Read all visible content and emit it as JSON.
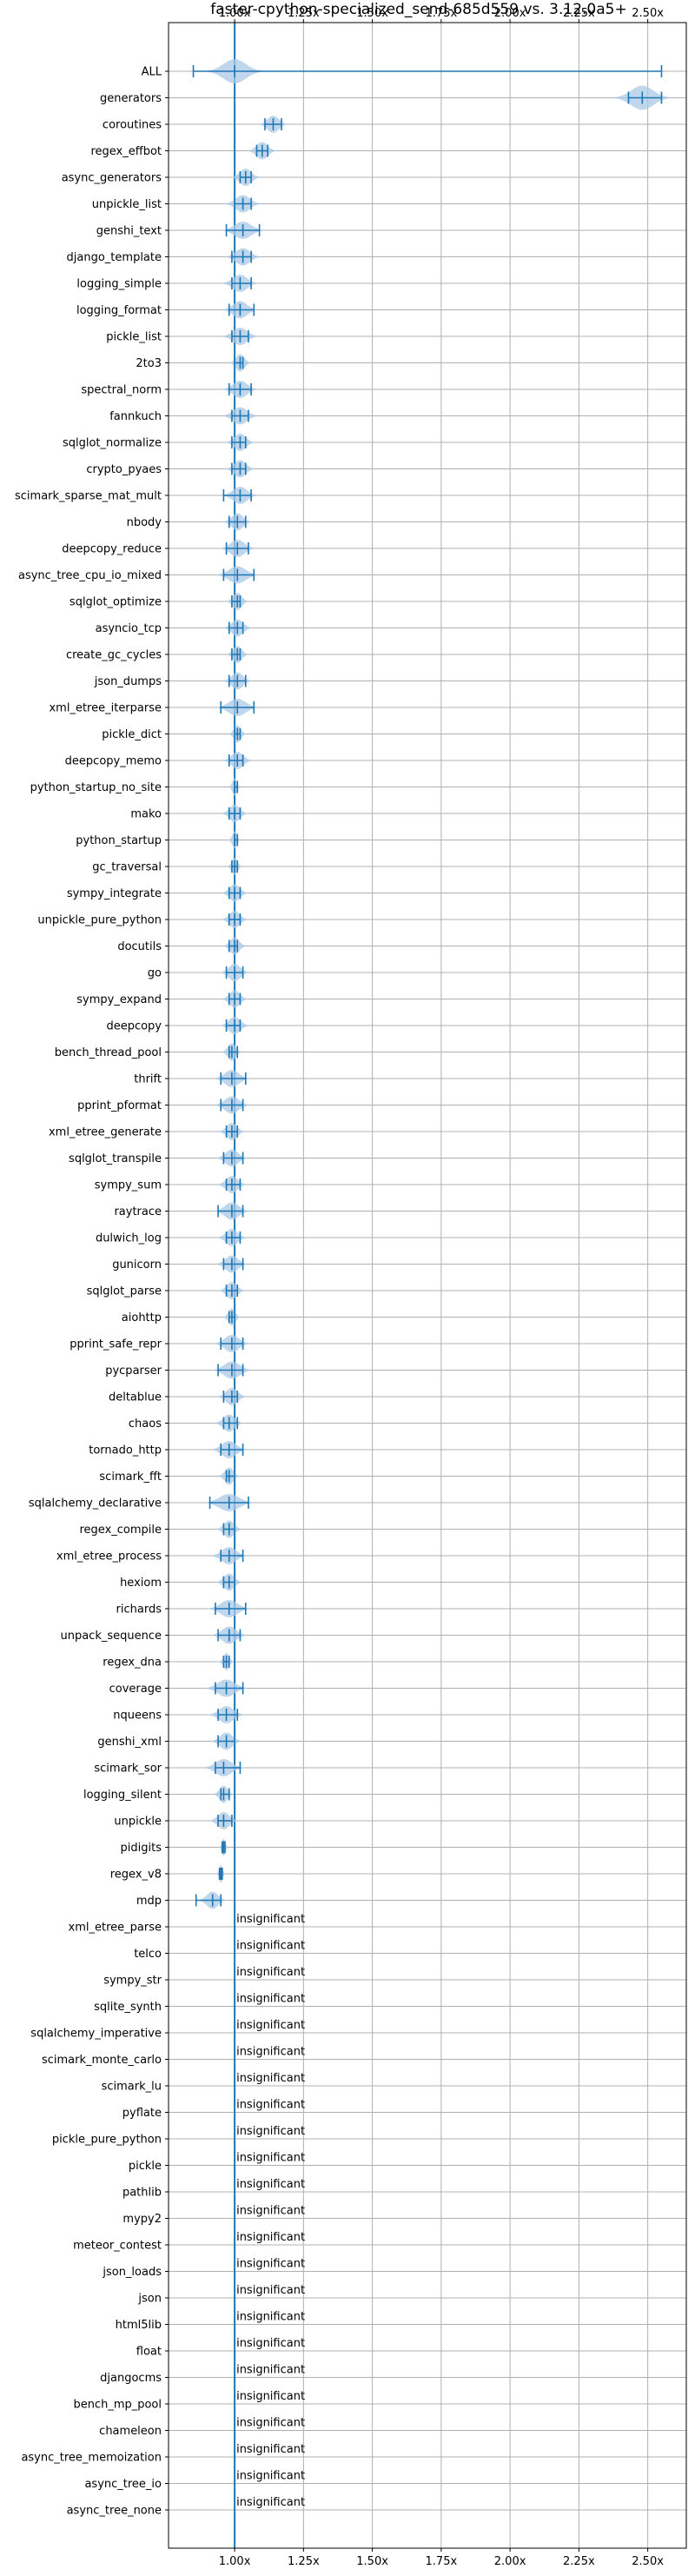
{
  "chart_data": {
    "type": "violin",
    "title": "faster-cpython-specialized_send-685d559 vs. 3.12.0a5+",
    "xlabel": "",
    "ylabel": "",
    "xlim": [
      0.76,
      2.64
    ],
    "xticks": [
      1.0,
      1.25,
      1.5,
      1.75,
      2.0,
      2.25,
      2.5
    ],
    "xtick_labels": [
      "1.00x",
      "1.25x",
      "1.50x",
      "1.75x",
      "2.00x",
      "2.25x",
      "2.50x"
    ],
    "reference_line": 1.0,
    "grid": true,
    "colors": {
      "accent": "#1f77b4",
      "violin": "#aac8e6",
      "grid": "#b0b0b0"
    },
    "insignificant_label": "insignificant",
    "benchmarks": [
      {
        "name": "ALL",
        "center": 1.0,
        "min": 0.85,
        "max": 2.55,
        "spread": 0.04
      },
      {
        "name": "generators",
        "center": 2.48,
        "min": 2.43,
        "max": 2.55,
        "spread": 0.04
      },
      {
        "name": "coroutines",
        "center": 1.14,
        "min": 1.11,
        "max": 1.17,
        "spread": 0.02
      },
      {
        "name": "regex_effbot",
        "center": 1.1,
        "min": 1.08,
        "max": 1.12,
        "spread": 0.02
      },
      {
        "name": "async_generators",
        "center": 1.04,
        "min": 1.02,
        "max": 1.06,
        "spread": 0.02
      },
      {
        "name": "unpickle_list",
        "center": 1.03,
        "min": 1.0,
        "max": 1.06,
        "spread": 0.025
      },
      {
        "name": "genshi_text",
        "center": 1.03,
        "min": 0.97,
        "max": 1.09,
        "spread": 0.03
      },
      {
        "name": "django_template",
        "center": 1.03,
        "min": 0.99,
        "max": 1.06,
        "spread": 0.025
      },
      {
        "name": "logging_simple",
        "center": 1.02,
        "min": 0.99,
        "max": 1.06,
        "spread": 0.025
      },
      {
        "name": "logging_format",
        "center": 1.02,
        "min": 0.98,
        "max": 1.07,
        "spread": 0.025
      },
      {
        "name": "pickle_list",
        "center": 1.02,
        "min": 0.99,
        "max": 1.05,
        "spread": 0.025
      },
      {
        "name": "2to3",
        "center": 1.02,
        "min": 1.0,
        "max": 1.03,
        "spread": 0.015
      },
      {
        "name": "spectral_norm",
        "center": 1.02,
        "min": 0.98,
        "max": 1.06,
        "spread": 0.025
      },
      {
        "name": "fannkuch",
        "center": 1.02,
        "min": 0.99,
        "max": 1.05,
        "spread": 0.025
      },
      {
        "name": "sqlglot_normalize",
        "center": 1.02,
        "min": 0.99,
        "max": 1.04,
        "spread": 0.02
      },
      {
        "name": "crypto_pyaes",
        "center": 1.02,
        "min": 0.99,
        "max": 1.04,
        "spread": 0.02
      },
      {
        "name": "scimark_sparse_mat_mult",
        "center": 1.02,
        "min": 0.96,
        "max": 1.06,
        "spread": 0.025
      },
      {
        "name": "nbody",
        "center": 1.01,
        "min": 0.98,
        "max": 1.04,
        "spread": 0.02
      },
      {
        "name": "deepcopy_reduce",
        "center": 1.01,
        "min": 0.97,
        "max": 1.05,
        "spread": 0.025
      },
      {
        "name": "async_tree_cpu_io_mixed",
        "center": 1.01,
        "min": 0.96,
        "max": 1.07,
        "spread": 0.03
      },
      {
        "name": "sqlglot_optimize",
        "center": 1.01,
        "min": 0.99,
        "max": 1.02,
        "spread": 0.015
      },
      {
        "name": "asyncio_tcp",
        "center": 1.01,
        "min": 0.98,
        "max": 1.03,
        "spread": 0.02
      },
      {
        "name": "create_gc_cycles",
        "center": 1.01,
        "min": 0.99,
        "max": 1.02,
        "spread": 0.015
      },
      {
        "name": "json_dumps",
        "center": 1.01,
        "min": 0.98,
        "max": 1.04,
        "spread": 0.02
      },
      {
        "name": "xml_etree_iterparse",
        "center": 1.01,
        "min": 0.95,
        "max": 1.07,
        "spread": 0.03
      },
      {
        "name": "pickle_dict",
        "center": 1.01,
        "min": 1.0,
        "max": 1.02,
        "spread": 0.012
      },
      {
        "name": "deepcopy_memo",
        "center": 1.01,
        "min": 0.98,
        "max": 1.03,
        "spread": 0.02
      },
      {
        "name": "python_startup_no_site",
        "center": 1.0,
        "min": 1.0,
        "max": 1.01,
        "spread": 0.008
      },
      {
        "name": "mako",
        "center": 1.0,
        "min": 0.98,
        "max": 1.02,
        "spread": 0.018
      },
      {
        "name": "python_startup",
        "center": 1.0,
        "min": 1.0,
        "max": 1.01,
        "spread": 0.008
      },
      {
        "name": "gc_traversal",
        "center": 1.0,
        "min": 0.99,
        "max": 1.01,
        "spread": 0.01
      },
      {
        "name": "sympy_integrate",
        "center": 1.0,
        "min": 0.98,
        "max": 1.02,
        "spread": 0.018
      },
      {
        "name": "unpickle_pure_python",
        "center": 1.0,
        "min": 0.98,
        "max": 1.02,
        "spread": 0.018
      },
      {
        "name": "docutils",
        "center": 1.0,
        "min": 0.98,
        "max": 1.01,
        "spread": 0.016
      },
      {
        "name": "go",
        "center": 1.0,
        "min": 0.97,
        "max": 1.03,
        "spread": 0.02
      },
      {
        "name": "sympy_expand",
        "center": 1.0,
        "min": 0.98,
        "max": 1.02,
        "spread": 0.018
      },
      {
        "name": "deepcopy",
        "center": 1.0,
        "min": 0.97,
        "max": 1.02,
        "spread": 0.02
      },
      {
        "name": "bench_thread_pool",
        "center": 0.99,
        "min": 0.98,
        "max": 1.01,
        "spread": 0.014
      },
      {
        "name": "thrift",
        "center": 0.99,
        "min": 0.95,
        "max": 1.04,
        "spread": 0.025
      },
      {
        "name": "pprint_pformat",
        "center": 0.99,
        "min": 0.95,
        "max": 1.03,
        "spread": 0.025
      },
      {
        "name": "xml_etree_generate",
        "center": 0.99,
        "min": 0.97,
        "max": 1.01,
        "spread": 0.018
      },
      {
        "name": "sqlglot_transpile",
        "center": 0.99,
        "min": 0.96,
        "max": 1.03,
        "spread": 0.022
      },
      {
        "name": "sympy_sum",
        "center": 0.99,
        "min": 0.97,
        "max": 1.02,
        "spread": 0.02
      },
      {
        "name": "raytrace",
        "center": 0.99,
        "min": 0.94,
        "max": 1.03,
        "spread": 0.025
      },
      {
        "name": "dulwich_log",
        "center": 0.99,
        "min": 0.97,
        "max": 1.02,
        "spread": 0.02
      },
      {
        "name": "gunicorn",
        "center": 0.99,
        "min": 0.96,
        "max": 1.03,
        "spread": 0.022
      },
      {
        "name": "sqlglot_parse",
        "center": 0.99,
        "min": 0.97,
        "max": 1.01,
        "spread": 0.018
      },
      {
        "name": "aiohttp",
        "center": 0.99,
        "min": 0.98,
        "max": 1.0,
        "spread": 0.012
      },
      {
        "name": "pprint_safe_repr",
        "center": 0.99,
        "min": 0.95,
        "max": 1.03,
        "spread": 0.025
      },
      {
        "name": "pycparser",
        "center": 0.99,
        "min": 0.94,
        "max": 1.03,
        "spread": 0.028
      },
      {
        "name": "deltablue",
        "center": 0.99,
        "min": 0.96,
        "max": 1.01,
        "spread": 0.02
      },
      {
        "name": "chaos",
        "center": 0.98,
        "min": 0.96,
        "max": 1.01,
        "spread": 0.02
      },
      {
        "name": "tornado_http",
        "center": 0.98,
        "min": 0.95,
        "max": 1.03,
        "spread": 0.025
      },
      {
        "name": "scimark_fft",
        "center": 0.98,
        "min": 0.97,
        "max": 1.0,
        "spread": 0.015
      },
      {
        "name": "sqlalchemy_declarative",
        "center": 0.98,
        "min": 0.91,
        "max": 1.05,
        "spread": 0.035
      },
      {
        "name": "regex_compile",
        "center": 0.98,
        "min": 0.96,
        "max": 1.0,
        "spread": 0.018
      },
      {
        "name": "xml_etree_process",
        "center": 0.98,
        "min": 0.95,
        "max": 1.03,
        "spread": 0.025
      },
      {
        "name": "hexiom",
        "center": 0.98,
        "min": 0.96,
        "max": 1.0,
        "spread": 0.018
      },
      {
        "name": "richards",
        "center": 0.98,
        "min": 0.93,
        "max": 1.04,
        "spread": 0.03
      },
      {
        "name": "unpack_sequence",
        "center": 0.98,
        "min": 0.94,
        "max": 1.02,
        "spread": 0.025
      },
      {
        "name": "regex_dna",
        "center": 0.97,
        "min": 0.96,
        "max": 0.98,
        "spread": 0.01
      },
      {
        "name": "coverage",
        "center": 0.97,
        "min": 0.93,
        "max": 1.03,
        "spread": 0.03
      },
      {
        "name": "nqueens",
        "center": 0.97,
        "min": 0.94,
        "max": 1.01,
        "spread": 0.025
      },
      {
        "name": "genshi_xml",
        "center": 0.97,
        "min": 0.94,
        "max": 1.0,
        "spread": 0.022
      },
      {
        "name": "scimark_sor",
        "center": 0.96,
        "min": 0.93,
        "max": 1.02,
        "spread": 0.028
      },
      {
        "name": "logging_silent",
        "center": 0.96,
        "min": 0.95,
        "max": 0.98,
        "spread": 0.014
      },
      {
        "name": "unpickle",
        "center": 0.96,
        "min": 0.94,
        "max": 0.99,
        "spread": 0.02
      },
      {
        "name": "pidigits",
        "center": 0.96,
        "min": 0.955,
        "max": 0.965,
        "spread": 0.006
      },
      {
        "name": "regex_v8",
        "center": 0.95,
        "min": 0.945,
        "max": 0.955,
        "spread": 0.006
      },
      {
        "name": "mdp",
        "center": 0.92,
        "min": 0.86,
        "max": 0.95,
        "spread": 0.02
      },
      {
        "name": "xml_etree_parse",
        "insignificant": true
      },
      {
        "name": "telco",
        "insignificant": true
      },
      {
        "name": "sympy_str",
        "insignificant": true
      },
      {
        "name": "sqlite_synth",
        "insignificant": true
      },
      {
        "name": "sqlalchemy_imperative",
        "insignificant": true
      },
      {
        "name": "scimark_monte_carlo",
        "insignificant": true
      },
      {
        "name": "scimark_lu",
        "insignificant": true
      },
      {
        "name": "pyflate",
        "insignificant": true
      },
      {
        "name": "pickle_pure_python",
        "insignificant": true
      },
      {
        "name": "pickle",
        "insignificant": true
      },
      {
        "name": "pathlib",
        "insignificant": true
      },
      {
        "name": "mypy2",
        "insignificant": true
      },
      {
        "name": "meteor_contest",
        "insignificant": true
      },
      {
        "name": "json_loads",
        "insignificant": true
      },
      {
        "name": "json",
        "insignificant": true
      },
      {
        "name": "html5lib",
        "insignificant": true
      },
      {
        "name": "float",
        "insignificant": true
      },
      {
        "name": "djangocms",
        "insignificant": true
      },
      {
        "name": "bench_mp_pool",
        "insignificant": true
      },
      {
        "name": "chameleon",
        "insignificant": true
      },
      {
        "name": "async_tree_memoization",
        "insignificant": true
      },
      {
        "name": "async_tree_io",
        "insignificant": true
      },
      {
        "name": "async_tree_none",
        "insignificant": true
      }
    ]
  }
}
